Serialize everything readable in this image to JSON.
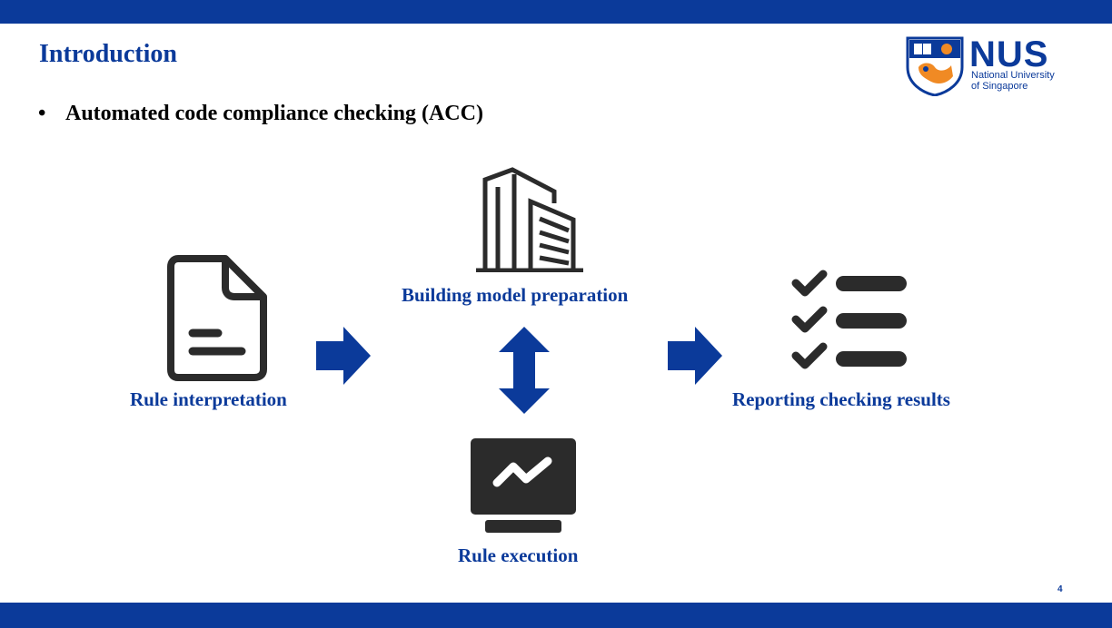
{
  "slide": {
    "title": "Introduction",
    "bullet_marker": "•",
    "bullet": "Automated code compliance checking (ACC)",
    "page_number": "4"
  },
  "logo": {
    "name": "NUS",
    "subtitle_line1": "National University",
    "subtitle_line2": "of Singapore"
  },
  "diagram": {
    "nodes": [
      {
        "label": "Rule interpretation",
        "icon": "document-icon"
      },
      {
        "label": "Building model preparation",
        "icon": "building-icon"
      },
      {
        "label": "Rule execution",
        "icon": "monitor-chart-icon"
      },
      {
        "label": "Reporting checking results",
        "icon": "checklist-icon"
      }
    ],
    "arrows": [
      {
        "from": "Rule interpretation",
        "to": "Building model preparation",
        "kind": "right"
      },
      {
        "from": "Building model preparation",
        "to": "Rule execution",
        "kind": "bidirectional"
      },
      {
        "from": "Building model preparation",
        "to": "Reporting checking results",
        "kind": "right"
      }
    ]
  },
  "colors": {
    "brand_blue": "#0b3a9a",
    "icon_dark": "#2b2b2b",
    "nus_orange": "#f08a24"
  }
}
